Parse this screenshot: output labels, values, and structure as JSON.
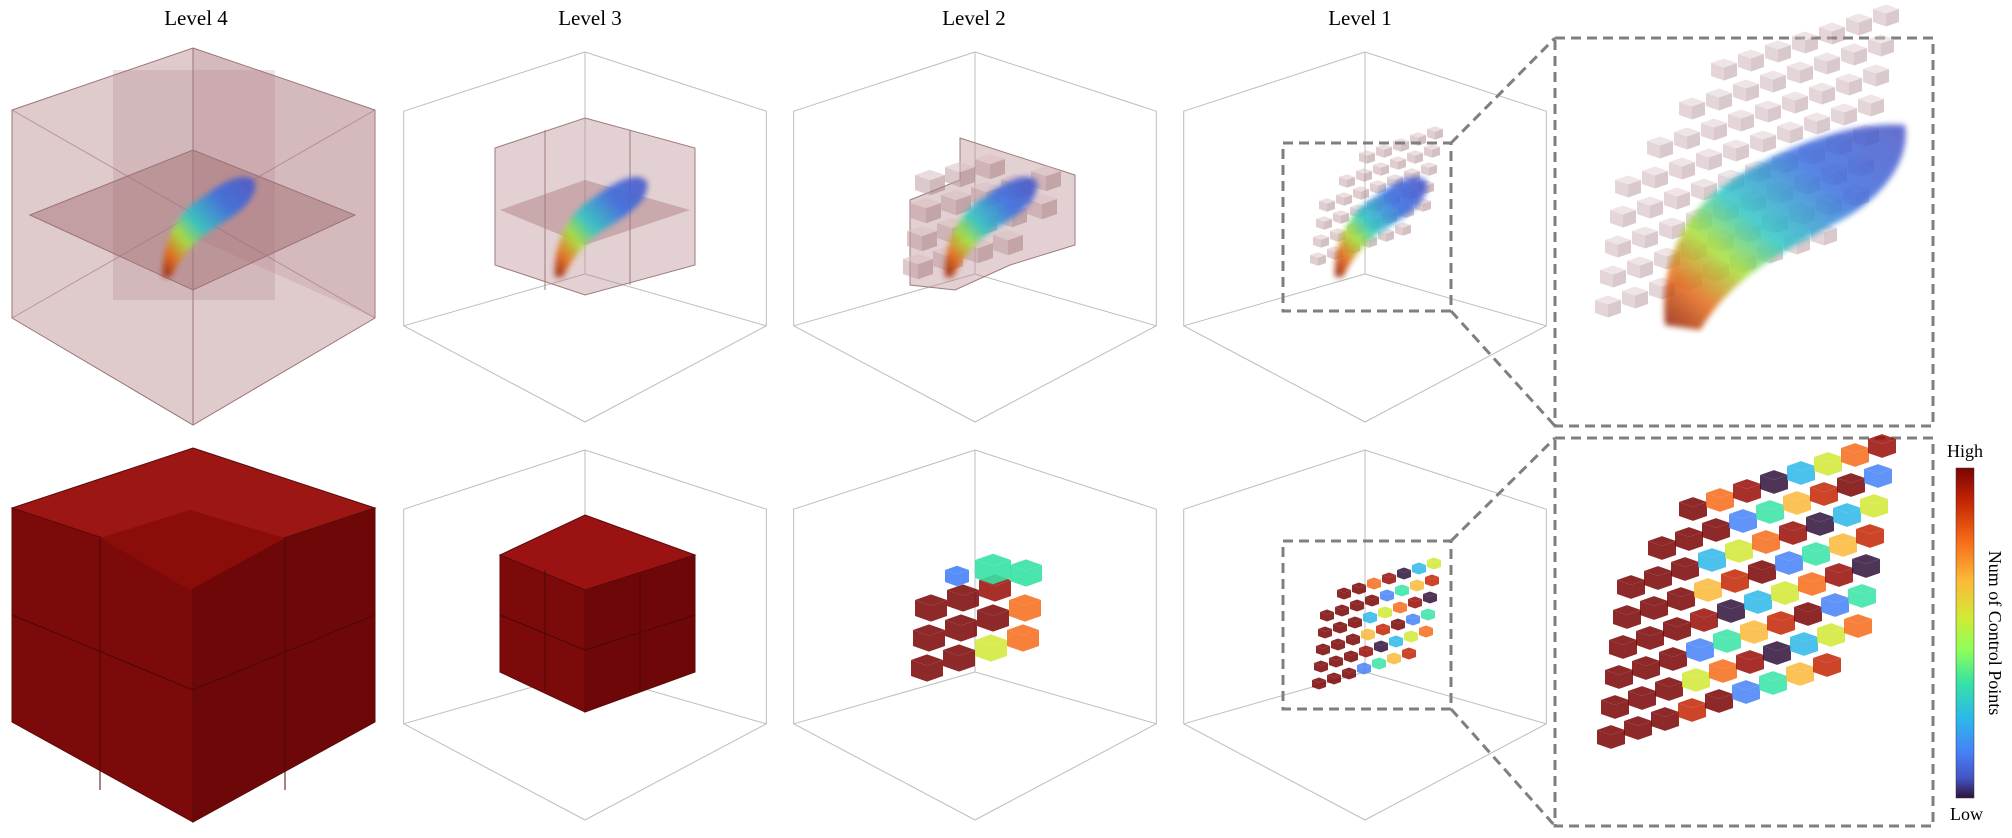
{
  "figure": {
    "column_titles": [
      "Level 4",
      "Level 3",
      "Level 2",
      "Level 1"
    ],
    "colorbar": {
      "high_label": "High",
      "low_label": "Low",
      "axis_label": "Num of Control Points",
      "stops": [
        "#7a0403",
        "#c42503",
        "#f66b19",
        "#fbb938",
        "#d2e935",
        "#8ffe59",
        "#36e3a5",
        "#2bb8e9",
        "#4682f8",
        "#4453c2",
        "#30123b"
      ]
    },
    "colors": {
      "cube_translucent": "#b88a8e",
      "cube_dark_red": "#7d0a0a",
      "zoom_box_border": "#7f7f7f",
      "axis_gray": "#bdbdbd"
    }
  }
}
